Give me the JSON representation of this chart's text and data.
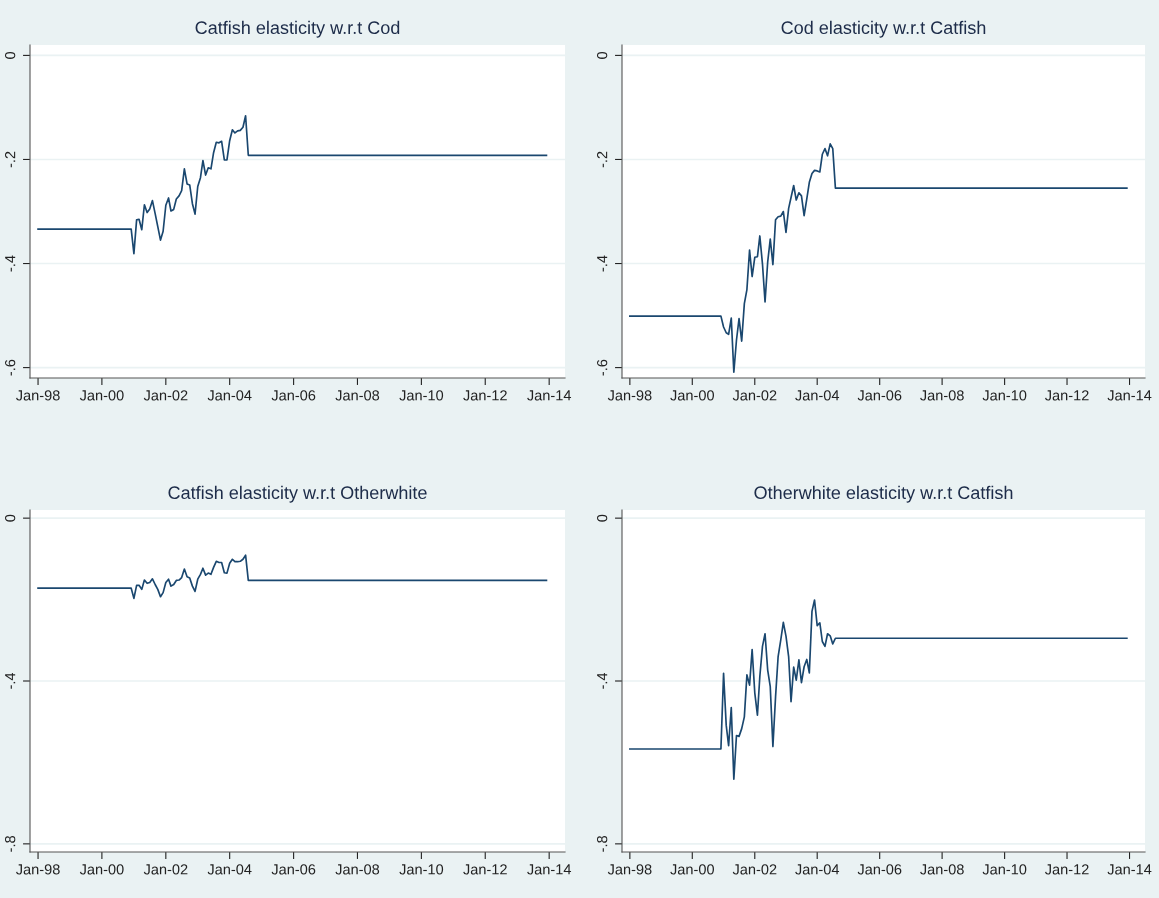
{
  "chart_data": [
    {
      "type": "line",
      "title": "Catfish elasticity w.r.t Cod",
      "color": "#1a476f",
      "grid": "y",
      "x": [
        "1998-01",
        "2000-12",
        "2001-01",
        "2001-02",
        "2001-03",
        "2001-04",
        "2001-05",
        "2001-06",
        "2001-07",
        "2001-08",
        "2001-09",
        "2001-10",
        "2001-11",
        "2001-12",
        "2002-01",
        "2002-02",
        "2002-03",
        "2002-04",
        "2002-05",
        "2002-06",
        "2002-07",
        "2002-08",
        "2002-09",
        "2002-10",
        "2002-11",
        "2002-12",
        "2003-01",
        "2003-02",
        "2003-03",
        "2003-04",
        "2003-05",
        "2003-06",
        "2003-07",
        "2003-08",
        "2003-09",
        "2003-10",
        "2003-11",
        "2003-12",
        "2004-01",
        "2004-02",
        "2004-03",
        "2004-04",
        "2004-05",
        "2004-06",
        "2004-07",
        "2004-08",
        "2013-12"
      ],
      "values": [
        -0.334,
        -0.334,
        -0.381,
        -0.316,
        -0.315,
        -0.335,
        -0.287,
        -0.302,
        -0.295,
        -0.279,
        -0.304,
        -0.329,
        -0.355,
        -0.338,
        -0.288,
        -0.274,
        -0.299,
        -0.296,
        -0.276,
        -0.27,
        -0.26,
        -0.218,
        -0.247,
        -0.249,
        -0.285,
        -0.305,
        -0.252,
        -0.235,
        -0.202,
        -0.23,
        -0.216,
        -0.218,
        -0.187,
        -0.167,
        -0.168,
        -0.165,
        -0.201,
        -0.201,
        -0.164,
        -0.143,
        -0.149,
        -0.145,
        -0.144,
        -0.138,
        -0.116,
        -0.192,
        -0.192
      ],
      "xlim": [
        "1997-10",
        "2014-07"
      ],
      "ylim": [
        -0.62,
        0.02
      ],
      "xticks": [
        {
          "value": "1998-01",
          "label": "Jan-98"
        },
        {
          "value": "2000-01",
          "label": "Jan-00"
        },
        {
          "value": "2002-01",
          "label": "Jan-02"
        },
        {
          "value": "2004-01",
          "label": "Jan-04"
        },
        {
          "value": "2006-01",
          "label": "Jan-06"
        },
        {
          "value": "2008-01",
          "label": "Jan-08"
        },
        {
          "value": "2010-01",
          "label": "Jan-10"
        },
        {
          "value": "2012-01",
          "label": "Jan-12"
        },
        {
          "value": "2014-01",
          "label": "Jan-14"
        }
      ],
      "yticks": [
        {
          "value": -0.6,
          "label": "-.6"
        },
        {
          "value": -0.4,
          "label": "-.4"
        },
        {
          "value": -0.2,
          "label": "-.2"
        },
        0
      ]
    },
    {
      "type": "line",
      "title": "Cod elasticity w.r.t Catfish",
      "color": "#1a476f",
      "grid": "y",
      "x": [
        "1998-01",
        "2000-12",
        "2001-01",
        "2001-02",
        "2001-03",
        "2001-04",
        "2001-05",
        "2001-06",
        "2001-07",
        "2001-08",
        "2001-09",
        "2001-10",
        "2001-11",
        "2001-12",
        "2002-01",
        "2002-02",
        "2002-03",
        "2002-04",
        "2002-05",
        "2002-06",
        "2002-07",
        "2002-08",
        "2002-09",
        "2002-10",
        "2002-11",
        "2002-12",
        "2003-01",
        "2003-02",
        "2003-03",
        "2003-04",
        "2003-05",
        "2003-06",
        "2003-07",
        "2003-08",
        "2003-09",
        "2003-10",
        "2003-11",
        "2003-12",
        "2004-01",
        "2004-02",
        "2004-03",
        "2004-04",
        "2004-05",
        "2004-06",
        "2004-07",
        "2004-08",
        "2013-12"
      ],
      "values": [
        -0.501,
        -0.501,
        -0.522,
        -0.533,
        -0.536,
        -0.505,
        -0.609,
        -0.547,
        -0.506,
        -0.549,
        -0.477,
        -0.45,
        -0.374,
        -0.425,
        -0.388,
        -0.387,
        -0.347,
        -0.401,
        -0.474,
        -0.397,
        -0.353,
        -0.402,
        -0.316,
        -0.31,
        -0.309,
        -0.3,
        -0.34,
        -0.294,
        -0.273,
        -0.25,
        -0.278,
        -0.264,
        -0.27,
        -0.308,
        -0.276,
        -0.244,
        -0.227,
        -0.221,
        -0.222,
        -0.224,
        -0.19,
        -0.179,
        -0.193,
        -0.17,
        -0.179,
        -0.255,
        -0.255
      ],
      "xlim": [
        "1997-10",
        "2014-07"
      ],
      "ylim": [
        -0.62,
        0.02
      ],
      "xticks": [
        {
          "value": "1998-01",
          "label": "Jan-98"
        },
        {
          "value": "2000-01",
          "label": "Jan-00"
        },
        {
          "value": "2002-01",
          "label": "Jan-02"
        },
        {
          "value": "2004-01",
          "label": "Jan-04"
        },
        {
          "value": "2006-01",
          "label": "Jan-06"
        },
        {
          "value": "2008-01",
          "label": "Jan-08"
        },
        {
          "value": "2010-01",
          "label": "Jan-10"
        },
        {
          "value": "2012-01",
          "label": "Jan-12"
        },
        {
          "value": "2014-01",
          "label": "Jan-14"
        }
      ],
      "yticks": [
        {
          "value": -0.6,
          "label": "-.6"
        },
        {
          "value": -0.4,
          "label": "-.4"
        },
        {
          "value": -0.2,
          "label": "-.2"
        },
        0
      ]
    },
    {
      "type": "line",
      "title": "Catfish elasticity w.r.t Otherwhite",
      "color": "#1a476f",
      "grid": "y",
      "x": [
        "1998-01",
        "2000-12",
        "2001-01",
        "2001-02",
        "2001-03",
        "2001-04",
        "2001-05",
        "2001-06",
        "2001-07",
        "2001-08",
        "2001-09",
        "2001-10",
        "2001-11",
        "2001-12",
        "2002-01",
        "2002-02",
        "2002-03",
        "2002-04",
        "2002-05",
        "2002-06",
        "2002-07",
        "2002-08",
        "2002-09",
        "2002-10",
        "2002-11",
        "2002-12",
        "2003-01",
        "2003-02",
        "2003-03",
        "2003-04",
        "2003-05",
        "2003-06",
        "2003-07",
        "2003-08",
        "2003-09",
        "2003-10",
        "2003-11",
        "2003-12",
        "2004-01",
        "2004-02",
        "2004-03",
        "2004-04",
        "2004-05",
        "2004-06",
        "2004-07",
        "2004-08",
        "2013-12"
      ],
      "values": [
        -0.172,
        -0.172,
        -0.197,
        -0.165,
        -0.165,
        -0.175,
        -0.152,
        -0.16,
        -0.158,
        -0.149,
        -0.163,
        -0.175,
        -0.193,
        -0.183,
        -0.158,
        -0.15,
        -0.167,
        -0.163,
        -0.153,
        -0.152,
        -0.146,
        -0.125,
        -0.144,
        -0.147,
        -0.167,
        -0.18,
        -0.15,
        -0.138,
        -0.123,
        -0.14,
        -0.135,
        -0.138,
        -0.121,
        -0.106,
        -0.109,
        -0.109,
        -0.134,
        -0.135,
        -0.111,
        -0.101,
        -0.107,
        -0.107,
        -0.106,
        -0.101,
        -0.091,
        -0.153,
        -0.153
      ],
      "xlim": [
        "1997-10",
        "2014-07"
      ],
      "ylim": [
        -0.82,
        0.02
      ],
      "xticks": [
        {
          "value": "1998-01",
          "label": "Jan-98"
        },
        {
          "value": "2000-01",
          "label": "Jan-00"
        },
        {
          "value": "2002-01",
          "label": "Jan-02"
        },
        {
          "value": "2004-01",
          "label": "Jan-04"
        },
        {
          "value": "2006-01",
          "label": "Jan-06"
        },
        {
          "value": "2008-01",
          "label": "Jan-08"
        },
        {
          "value": "2010-01",
          "label": "Jan-10"
        },
        {
          "value": "2012-01",
          "label": "Jan-12"
        },
        {
          "value": "2014-01",
          "label": "Jan-14"
        }
      ],
      "yticks": [
        {
          "value": -0.8,
          "label": "-.8"
        },
        {
          "value": -0.4,
          "label": "-.4"
        },
        0
      ]
    },
    {
      "type": "line",
      "title": "Otherwhite elasticity w.r.t Catfish",
      "color": "#1a476f",
      "grid": "y",
      "x": [
        "1998-01",
        "2000-12",
        "2001-01",
        "2001-02",
        "2001-03",
        "2001-04",
        "2001-05",
        "2001-06",
        "2001-07",
        "2001-08",
        "2001-09",
        "2001-10",
        "2001-11",
        "2001-12",
        "2002-01",
        "2002-02",
        "2002-03",
        "2002-04",
        "2002-05",
        "2002-06",
        "2002-07",
        "2002-08",
        "2002-09",
        "2002-10",
        "2002-11",
        "2002-12",
        "2003-01",
        "2003-02",
        "2003-03",
        "2003-04",
        "2003-05",
        "2003-06",
        "2003-07",
        "2003-08",
        "2003-09",
        "2003-10",
        "2003-11",
        "2003-12",
        "2004-01",
        "2004-02",
        "2004-03",
        "2004-04",
        "2004-05",
        "2004-06",
        "2004-07",
        "2004-08",
        "2013-12"
      ],
      "values": [
        -0.567,
        -0.567,
        -0.381,
        -0.509,
        -0.559,
        -0.465,
        -0.641,
        -0.534,
        -0.536,
        -0.517,
        -0.488,
        -0.385,
        -0.41,
        -0.323,
        -0.429,
        -0.484,
        -0.389,
        -0.315,
        -0.284,
        -0.373,
        -0.414,
        -0.561,
        -0.439,
        -0.34,
        -0.299,
        -0.256,
        -0.29,
        -0.34,
        -0.451,
        -0.366,
        -0.398,
        -0.348,
        -0.404,
        -0.365,
        -0.347,
        -0.38,
        -0.229,
        -0.201,
        -0.264,
        -0.257,
        -0.303,
        -0.315,
        -0.284,
        -0.289,
        -0.309,
        -0.295,
        -0.295
      ],
      "xlim": [
        "1997-10",
        "2014-07"
      ],
      "ylim": [
        -0.82,
        0.02
      ],
      "xticks": [
        {
          "value": "1998-01",
          "label": "Jan-98"
        },
        {
          "value": "2000-01",
          "label": "Jan-00"
        },
        {
          "value": "2002-01",
          "label": "Jan-02"
        },
        {
          "value": "2004-01",
          "label": "Jan-04"
        },
        {
          "value": "2006-01",
          "label": "Jan-06"
        },
        {
          "value": "2008-01",
          "label": "Jan-08"
        },
        {
          "value": "2010-01",
          "label": "Jan-10"
        },
        {
          "value": "2012-01",
          "label": "Jan-12"
        },
        {
          "value": "2014-01",
          "label": "Jan-14"
        }
      ],
      "yticks": [
        {
          "value": -0.8,
          "label": "-.8"
        },
        {
          "value": -0.4,
          "label": "-.4"
        },
        0
      ]
    }
  ]
}
